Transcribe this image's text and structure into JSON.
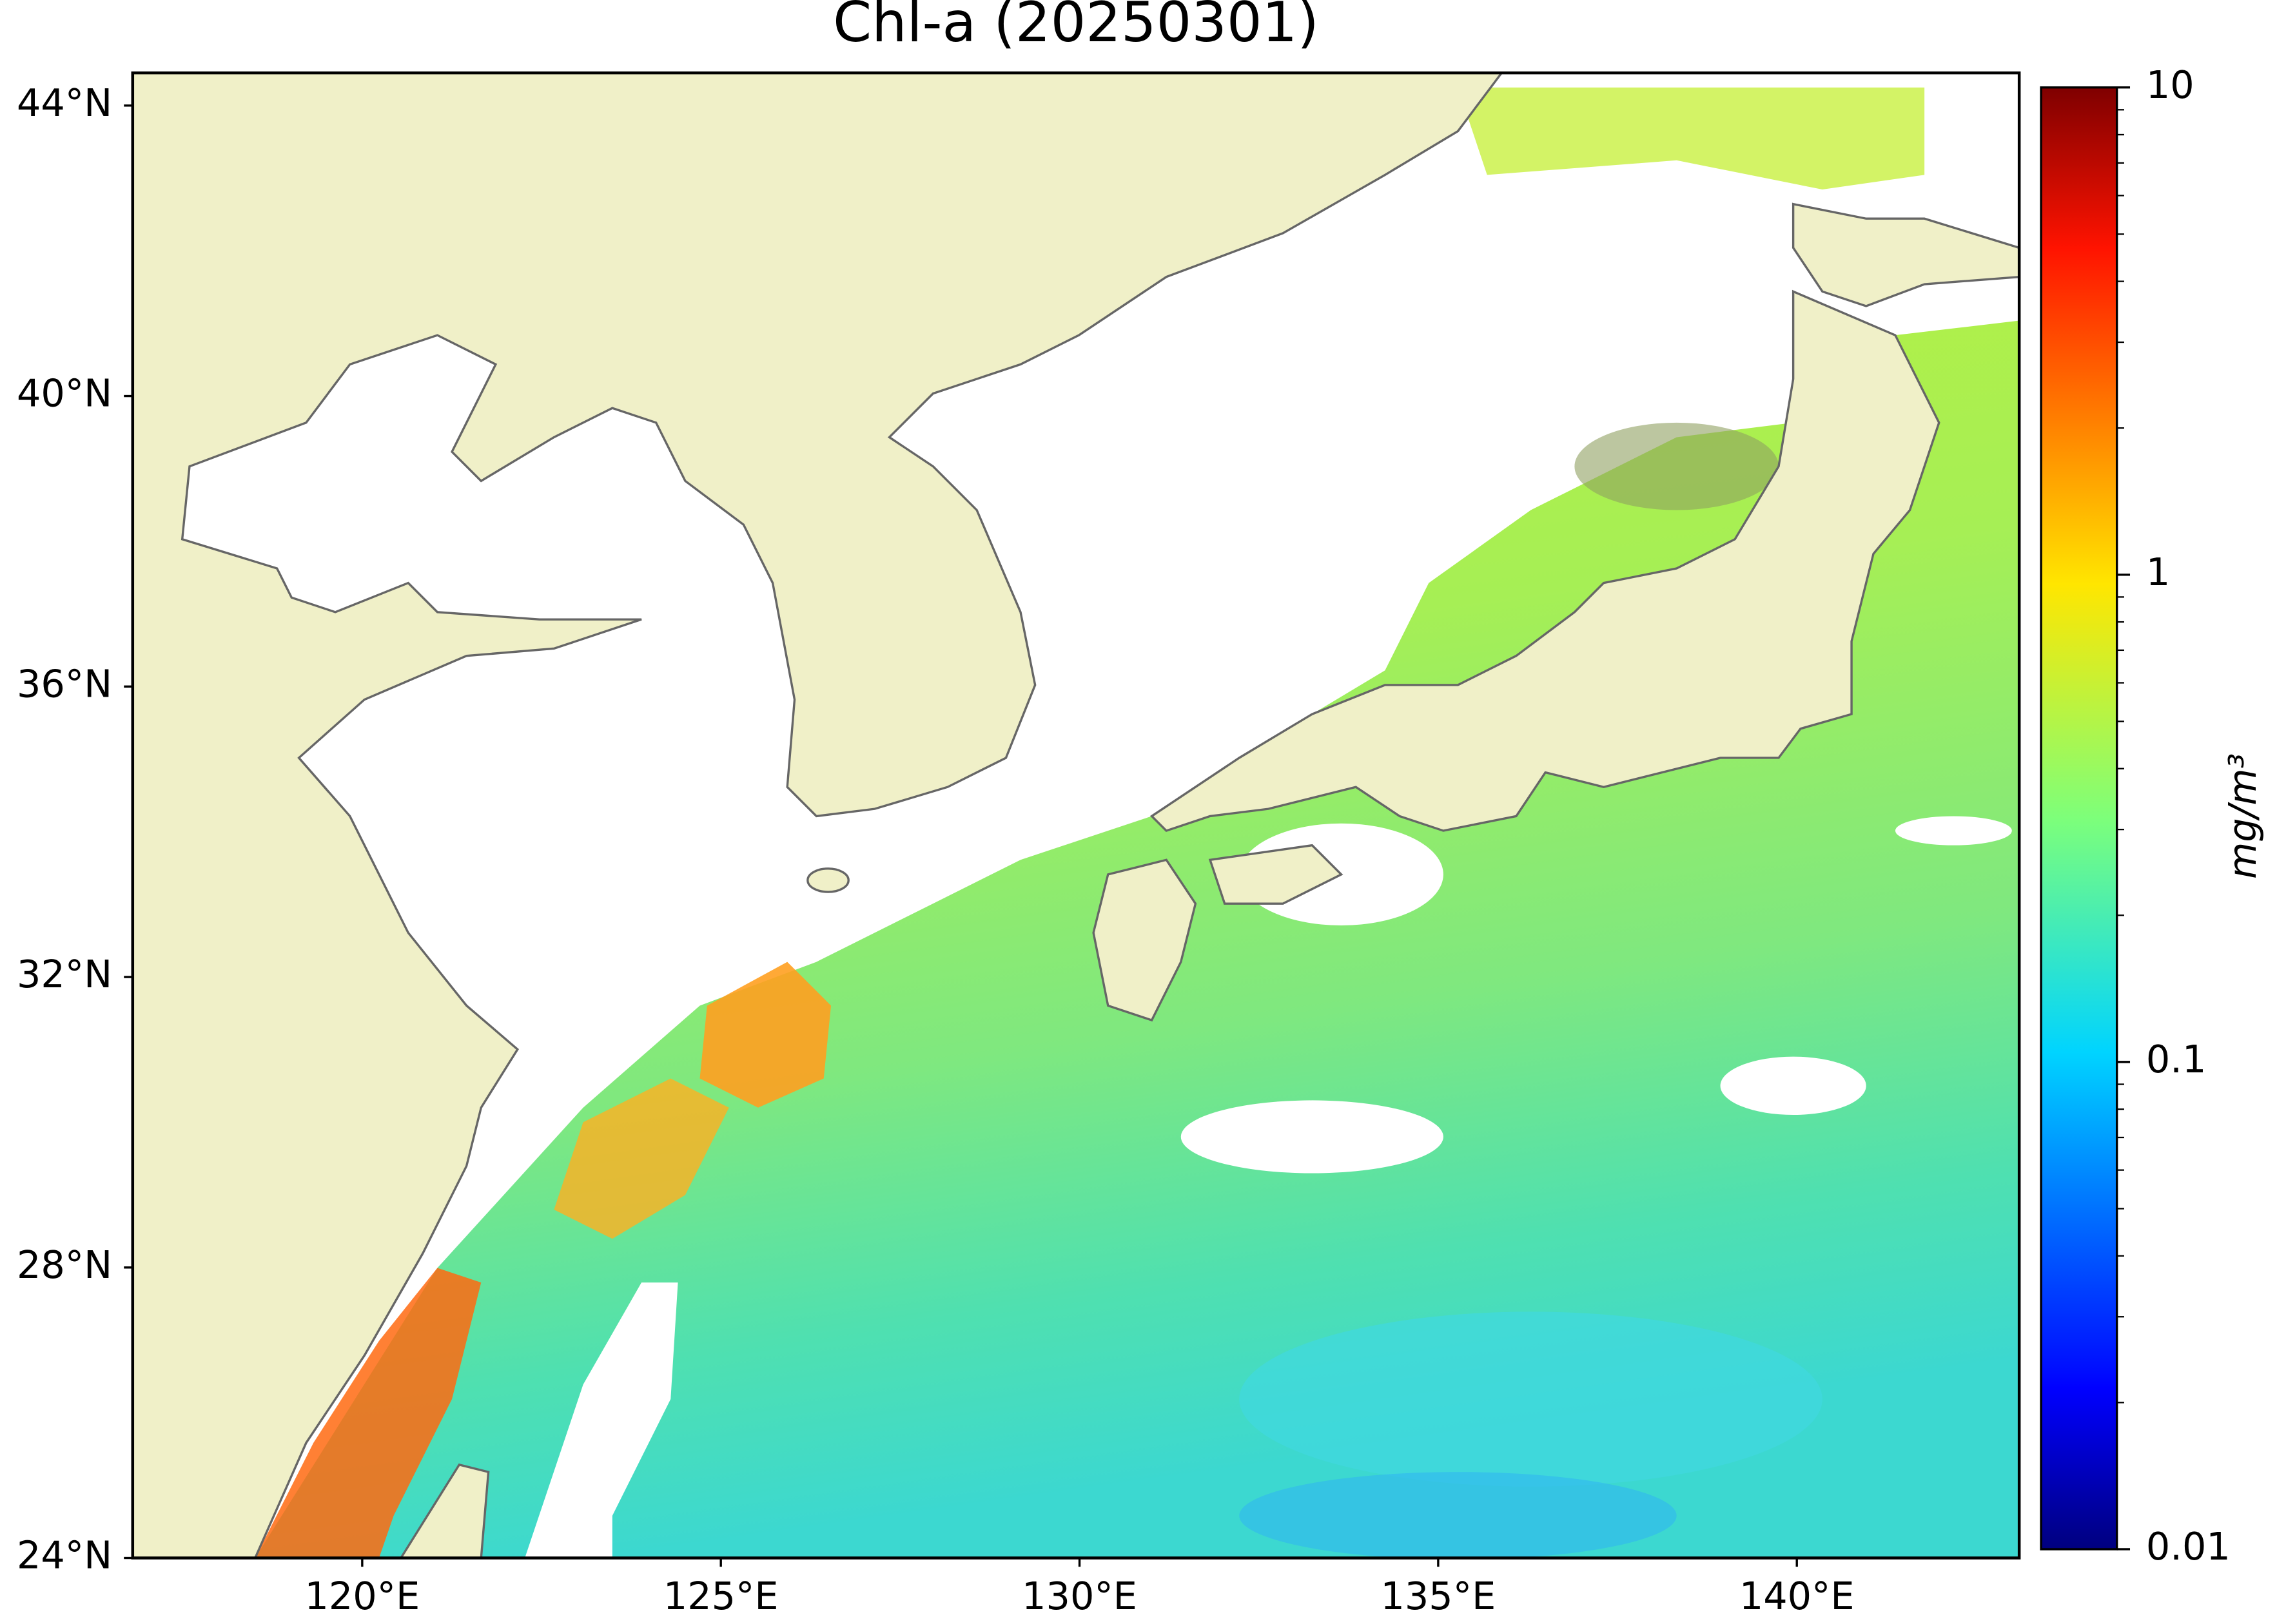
{
  "map": {
    "title": "Chl-a (20250301)",
    "lon_range": [
      116.8,
      143.1
    ],
    "lat_range": [
      24,
      44.45
    ],
    "lon_ticks": [
      {
        "value": 120,
        "label": "120°E"
      },
      {
        "value": 125,
        "label": "125°E"
      },
      {
        "value": 130,
        "label": "130°E"
      },
      {
        "value": 135,
        "label": "135°E"
      },
      {
        "value": 140,
        "label": "140°E"
      }
    ],
    "lat_ticks": [
      {
        "value": 24,
        "label": "24°N"
      },
      {
        "value": 28,
        "label": "28°N"
      },
      {
        "value": 32,
        "label": "32°N"
      },
      {
        "value": 36,
        "label": "36°N"
      },
      {
        "value": 40,
        "label": "40°N"
      },
      {
        "value": 44,
        "label": "44°N"
      }
    ],
    "colorbar": {
      "label": "mg/m³",
      "scale": "log",
      "lim": [
        0.01,
        10
      ],
      "ticks": [
        0.01,
        0.1,
        1,
        10
      ]
    }
  }
}
